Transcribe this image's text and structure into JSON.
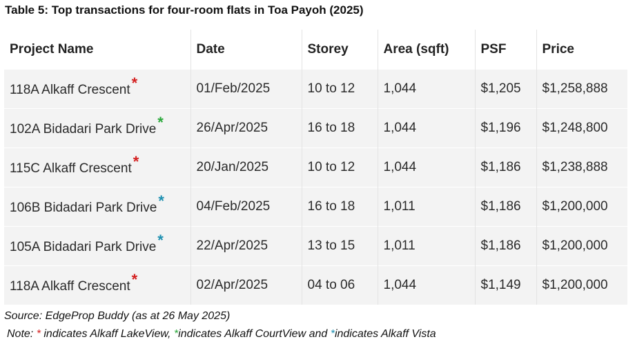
{
  "title": "Table 5: Top transactions for four-room flats in Toa Payoh (2025)",
  "table": {
    "headers": [
      "Project Name",
      "Date",
      "Storey",
      "Area (sqft)",
      "PSF",
      "Price"
    ],
    "rows": [
      {
        "project": "118A Alkaff Crescent",
        "marker": "*",
        "marker_color": "#d42020",
        "date": "01/Feb/2025",
        "storey": "10 to 12",
        "area": "1,044",
        "psf": "$1,205",
        "price": "$1,258,888"
      },
      {
        "project": "102A Bidadari Park Drive",
        "marker": "*",
        "marker_color": "#2aa83a",
        "date": "26/Apr/2025",
        "storey": "16 to 18",
        "area": "1,044",
        "psf": "$1,196",
        "price": "$1,248,800"
      },
      {
        "project": "115C Alkaff Crescent",
        "marker": "*",
        "marker_color": "#d42020",
        "date": "20/Jan/2025",
        "storey": "10 to 12",
        "area": "1,044",
        "psf": "$1,186",
        "price": "$1,238,888"
      },
      {
        "project": "106B Bidadari Park Drive",
        "marker": "*",
        "marker_color": "#1c8fb0",
        "date": "04/Feb/2025",
        "storey": "16 to 18",
        "area": "1,011",
        "psf": "$1,186",
        "price": "$1,200,000"
      },
      {
        "project": "105A Bidadari Park Drive",
        "marker": "*",
        "marker_color": "#1c8fb0",
        "date": "22/Apr/2025",
        "storey": "13 to 15",
        "area": "1,011",
        "psf": "$1,186",
        "price": "$1,200,000"
      },
      {
        "project": "118A Alkaff Crescent",
        "marker": "*",
        "marker_color": "#d42020",
        "date": "02/Apr/2025",
        "storey": "04 to 06",
        "area": "1,044",
        "psf": "$1,149",
        "price": "$1,200,000"
      }
    ]
  },
  "source": "Source: EdgeProp Buddy (as at 26 May 2025)",
  "note": {
    "prefix": "Note: ",
    "red_marker": "*",
    "red_text": " indicates Alkaff LakeView, ",
    "green_marker": "*",
    "green_text": "indicates Alkaff CourtView and ",
    "teal_marker": "*",
    "teal_text": "indicates Alkaff Vista"
  }
}
